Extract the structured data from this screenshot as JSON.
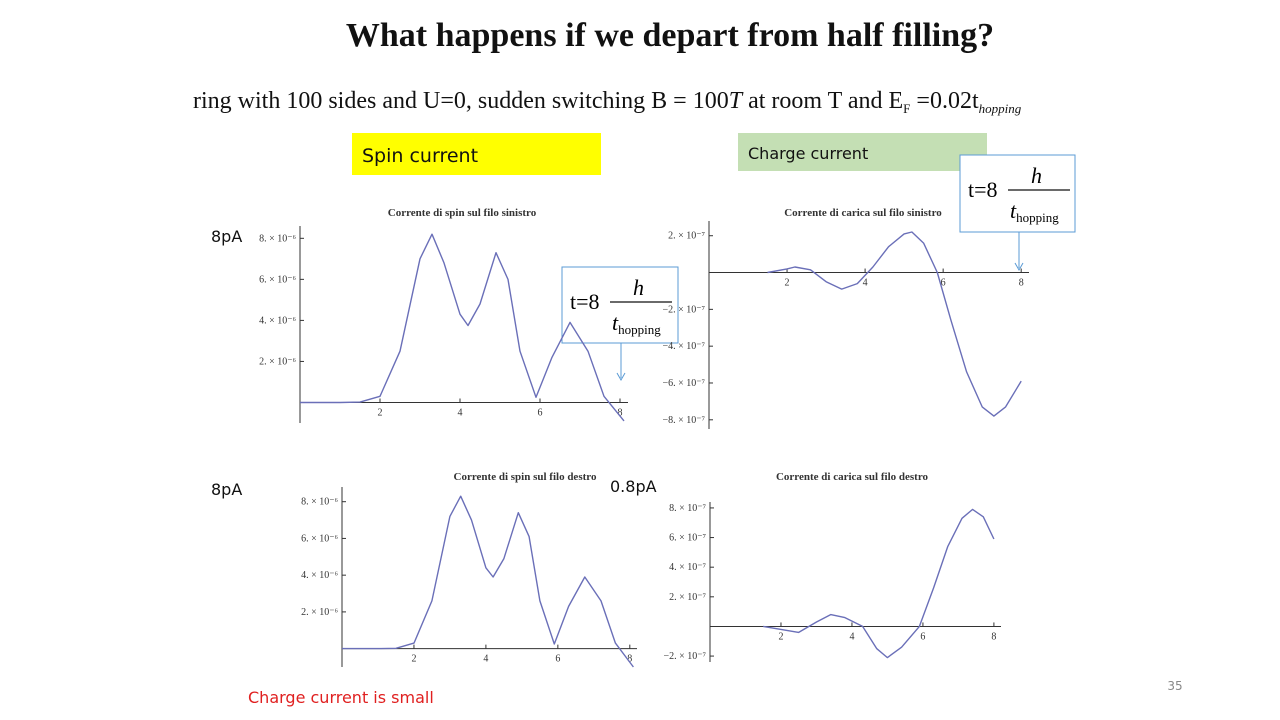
{
  "slide": {
    "title": "What happens if  we  depart from half filling?",
    "subtitle": [
      "ring with 100 sides and U=0, sudden switching B = 100",
      "T",
      " at room T and E",
      "F",
      " =0.02t",
      "hopping"
    ],
    "spin_label": "Spin current",
    "charge_label": "Charge  current",
    "formula": {
      "lhs": "t=8",
      "num": "h",
      "den": "t",
      "den_sub": "hopping"
    },
    "scale_labels": [
      "8pA",
      "8pA",
      "0.8pA"
    ],
    "note": "Charge current  is small",
    "page_number": "35"
  },
  "chart_data": [
    {
      "type": "line",
      "title": "Corrente di spin sul filo sinistro",
      "color": "#6a6fb8",
      "x": [
        0,
        1,
        1.5,
        2,
        2.5,
        3,
        3.3,
        3.6,
        4,
        4.2,
        4.5,
        4.9,
        5.2,
        5.5,
        5.9,
        6.3,
        6.75,
        7.2,
        7.6,
        8.1
      ],
      "values": [
        0,
        0,
        2e-08,
        3e-07,
        2.5e-06,
        7e-06,
        8.2e-06,
        6.8e-06,
        4.3e-06,
        3.75e-06,
        4.8e-06,
        7.3e-06,
        6e-06,
        2.5e-06,
        2.5e-07,
        2.2e-06,
        3.9e-06,
        2.5e-06,
        3e-07,
        -9e-07
      ],
      "xlim": [
        0,
        8.2
      ],
      "ylim": [
        -1e-06,
        8.6e-06
      ],
      "xticks": [
        2,
        4,
        6,
        8
      ],
      "yticks": [
        {
          "value": 2e-06,
          "label": "2. × 10⁻⁶"
        },
        {
          "value": 4e-06,
          "label": "4. × 10⁻⁶"
        },
        {
          "value": 6e-06,
          "label": "6. × 10⁻⁶"
        },
        {
          "value": 8e-06,
          "label": "8. × 10⁻⁶"
        }
      ]
    },
    {
      "type": "line",
      "title": "Corrente di carica sul filo sinistro",
      "color": "#6a6fb8",
      "x": [
        1.5,
        2,
        2.2,
        2.6,
        3,
        3.4,
        3.8,
        4.2,
        4.6,
        5,
        5.2,
        5.5,
        5.85,
        6.2,
        6.6,
        7,
        7.3,
        7.6,
        8
      ],
      "values": [
        0,
        2e-08,
        3e-08,
        1.5e-08,
        -5e-08,
        -9e-08,
        -6e-08,
        3e-08,
        1.4e-07,
        2.1e-07,
        2.2e-07,
        1.6e-07,
        0,
        -2.6e-07,
        -5.4e-07,
        -7.3e-07,
        -7.8e-07,
        -7.3e-07,
        -5.9e-07
      ],
      "xlim": [
        0,
        8.2
      ],
      "ylim": [
        -8.5e-07,
        2.8e-07
      ],
      "xticks": [
        2,
        4,
        6,
        8
      ],
      "yticks": [
        {
          "value": 2e-07,
          "label": "2. × 10⁻⁷"
        },
        {
          "value": -2e-07,
          "label": "−2. × 10⁻⁷"
        },
        {
          "value": -4e-07,
          "label": "−4. × 10⁻⁷"
        },
        {
          "value": -6e-07,
          "label": "−6. × 10⁻⁷"
        },
        {
          "value": -8e-07,
          "label": "−8. × 10⁻⁷"
        }
      ]
    },
    {
      "type": "line",
      "title": "Corrente di spin sul filo destro",
      "color": "#6a6fb8",
      "x": [
        0,
        1,
        1.5,
        2,
        2.5,
        3,
        3.3,
        3.6,
        4,
        4.2,
        4.5,
        4.9,
        5.2,
        5.5,
        5.9,
        6.3,
        6.75,
        7.2,
        7.6,
        8.1
      ],
      "values": [
        0,
        0,
        2e-08,
        3e-07,
        2.6e-06,
        7.2e-06,
        8.3e-06,
        7e-06,
        4.4e-06,
        3.9e-06,
        4.9e-06,
        7.4e-06,
        6.1e-06,
        2.6e-06,
        2.5e-07,
        2.3e-06,
        3.9e-06,
        2.6e-06,
        3e-07,
        -1e-06
      ],
      "xlim": [
        0,
        8.2
      ],
      "ylim": [
        -1e-06,
        8.8e-06
      ],
      "xticks": [
        2,
        4,
        6,
        8
      ],
      "yticks": [
        {
          "value": 2e-06,
          "label": "2. × 10⁻⁶"
        },
        {
          "value": 4e-06,
          "label": "4. × 10⁻⁶"
        },
        {
          "value": 6e-06,
          "label": "6. × 10⁻⁶"
        },
        {
          "value": 8e-06,
          "label": "8. × 10⁻⁶"
        }
      ]
    },
    {
      "type": "line",
      "title": "Corrente di carica sul filo destro",
      "color": "#6a6fb8",
      "x": [
        1.5,
        2,
        2.5,
        3,
        3.4,
        3.8,
        4.3,
        4.7,
        5,
        5.4,
        5.9,
        6.3,
        6.7,
        7.1,
        7.4,
        7.7,
        8
      ],
      "values": [
        0,
        -2e-08,
        -4e-08,
        3e-08,
        8e-08,
        6e-08,
        0,
        -1.5e-07,
        -2.1e-07,
        -1.4e-07,
        0,
        2.6e-07,
        5.4e-07,
        7.3e-07,
        7.9e-07,
        7.4e-07,
        5.9e-07
      ],
      "xlim": [
        0,
        8.2
      ],
      "ylim": [
        -2.4e-07,
        8.4e-07
      ],
      "xticks": [
        2,
        4,
        6,
        8
      ],
      "yticks": [
        {
          "value": 8e-07,
          "label": "8. × 10⁻⁷"
        },
        {
          "value": 6e-07,
          "label": "6. × 10⁻⁷"
        },
        {
          "value": 4e-07,
          "label": "4. × 10⁻⁷"
        },
        {
          "value": 2e-07,
          "label": "2. × 10⁻⁷"
        },
        {
          "value": -2e-07,
          "label": "−2. × 10⁻⁷"
        }
      ]
    }
  ]
}
